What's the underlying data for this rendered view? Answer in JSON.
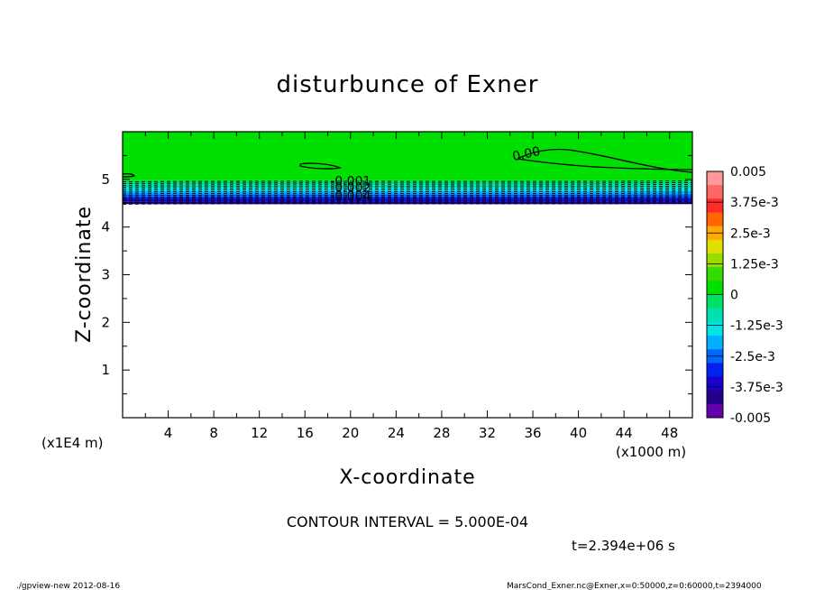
{
  "chart_data": {
    "type": "heatmap",
    "title": "disturbunce of Exner",
    "xlabel": "X-coordinate",
    "ylabel": "Z-coordinate",
    "x_unit": "(x1000 m)",
    "y_unit": "(x1E4 m)",
    "xlim": [
      0,
      50
    ],
    "ylim": [
      0,
      6
    ],
    "x_ticks": [
      4,
      8,
      12,
      16,
      20,
      24,
      28,
      32,
      36,
      40,
      44,
      48
    ],
    "y_ticks": [
      1,
      2,
      3,
      4,
      5
    ],
    "grid": false,
    "colorbar": {
      "min": -0.005,
      "max": 0.005,
      "tick_labels": [
        "0.005",
        "3.75e-3",
        "2.5e-3",
        "1.25e-3",
        "0",
        "-1.25e-3",
        "-2.5e-3",
        "-3.75e-3",
        "-0.005"
      ],
      "colors": [
        "#ff9999",
        "#ff6666",
        "#ff2a2a",
        "#ff6600",
        "#ffaa00",
        "#e0e000",
        "#99dd00",
        "#33dd00",
        "#00e000",
        "#00e066",
        "#00e0b0",
        "#00e5e5",
        "#00b0ff",
        "#0066ff",
        "#0022ee",
        "#1a00cc",
        "#22008a",
        "#6600aa"
      ]
    },
    "field_top_z": 6.0,
    "field_bottom_z": 4.48,
    "fill_bands": [
      {
        "z": [
          4.98,
          6.0
        ],
        "color": "#00e000"
      },
      {
        "z": [
          4.9,
          4.98
        ],
        "color": "#00e066"
      },
      {
        "z": [
          4.82,
          4.9
        ],
        "color": "#00e0b0"
      },
      {
        "z": [
          4.75,
          4.82
        ],
        "color": "#00e5e5"
      },
      {
        "z": [
          4.69,
          4.75
        ],
        "color": "#00b0ff"
      },
      {
        "z": [
          4.63,
          4.69
        ],
        "color": "#0066ff"
      },
      {
        "z": [
          4.58,
          4.63
        ],
        "color": "#0022ee"
      },
      {
        "z": [
          4.53,
          4.58
        ],
        "color": "#1a00cc"
      },
      {
        "z": [
          4.48,
          4.53
        ],
        "color": "#22008a"
      }
    ],
    "contour_labels": [
      {
        "text": "0.00",
        "x": 35.5,
        "z": 5.45
      },
      {
        "text": "-0.001",
        "x": 20.0,
        "z": 4.87
      },
      {
        "text": "-0.002",
        "x": 20.0,
        "z": 4.74
      },
      {
        "text": "-0.004",
        "x": 20.0,
        "z": 4.56
      }
    ],
    "contour_interval_text": "CONTOUR INTERVAL = 5.000E-04",
    "time_text": "t=2.394e+06 s"
  },
  "footer": {
    "left": "./gpview-new   2012-08-16",
    "right": "MarsCond_Exner.nc@Exner,x=0:50000,z=0:60000,t=2394000"
  }
}
